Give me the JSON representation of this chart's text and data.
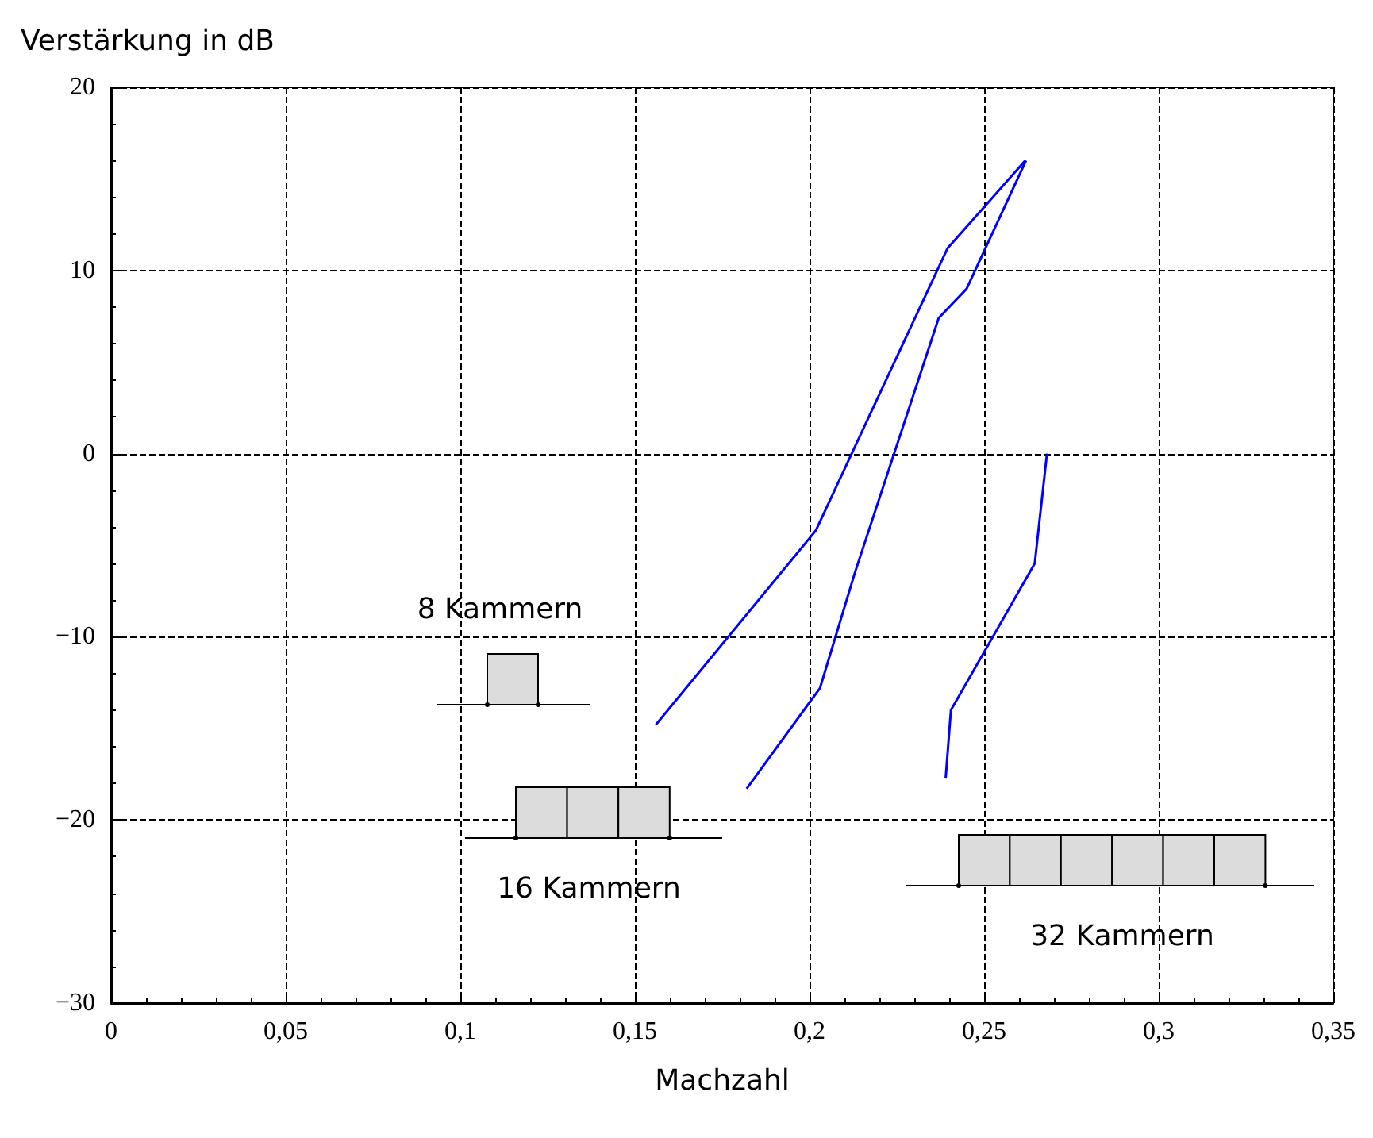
{
  "chart_data": {
    "type": "line",
    "xlabel": "Machzahl",
    "ylabel": "Verstärkung in dB",
    "xlim": [
      0,
      0.35
    ],
    "ylim": [
      -30,
      20
    ],
    "xticks": [
      0,
      {
        "value": 0.05,
        "label": "0,05"
      },
      {
        "value": 0.1,
        "label": "0,1"
      },
      {
        "value": 0.15,
        "label": "0,15"
      },
      {
        "value": 0.2,
        "label": "0,2"
      },
      {
        "value": 0.25,
        "label": "0,25"
      },
      {
        "value": 0.3,
        "label": "0,3"
      },
      {
        "value": 0.35,
        "label": "0,35"
      }
    ],
    "yticks": [
      {
        "value": -30,
        "label": "−30"
      },
      {
        "value": -20,
        "label": "−20"
      },
      {
        "value": -10,
        "label": "−10"
      },
      0,
      10,
      20
    ],
    "grid": true,
    "marker": "none",
    "line_style": "solid",
    "series": [
      {
        "color": "#0000ff",
        "x": [
          0.156,
          0.2018,
          0.2395,
          0.2618
        ],
        "values": [
          -14.8,
          -4.2,
          11.2,
          16.0
        ]
      },
      {
        "color": "#0000ff",
        "x": [
          0.182,
          0.203,
          0.213,
          0.237,
          0.245,
          0.262
        ],
        "values": [
          -18.3,
          -12.8,
          -6.5,
          7.4,
          9.0,
          16.0
        ]
      },
      {
        "color": "#0000ff",
        "x": [
          0.239,
          0.2405,
          0.2645,
          0.268
        ],
        "values": [
          -17.7,
          -14.0,
          -6.0,
          0.0
        ]
      }
    ],
    "annotations": [
      "8 Kammern",
      "16 Kammern",
      "32 Kammern"
    ]
  }
}
